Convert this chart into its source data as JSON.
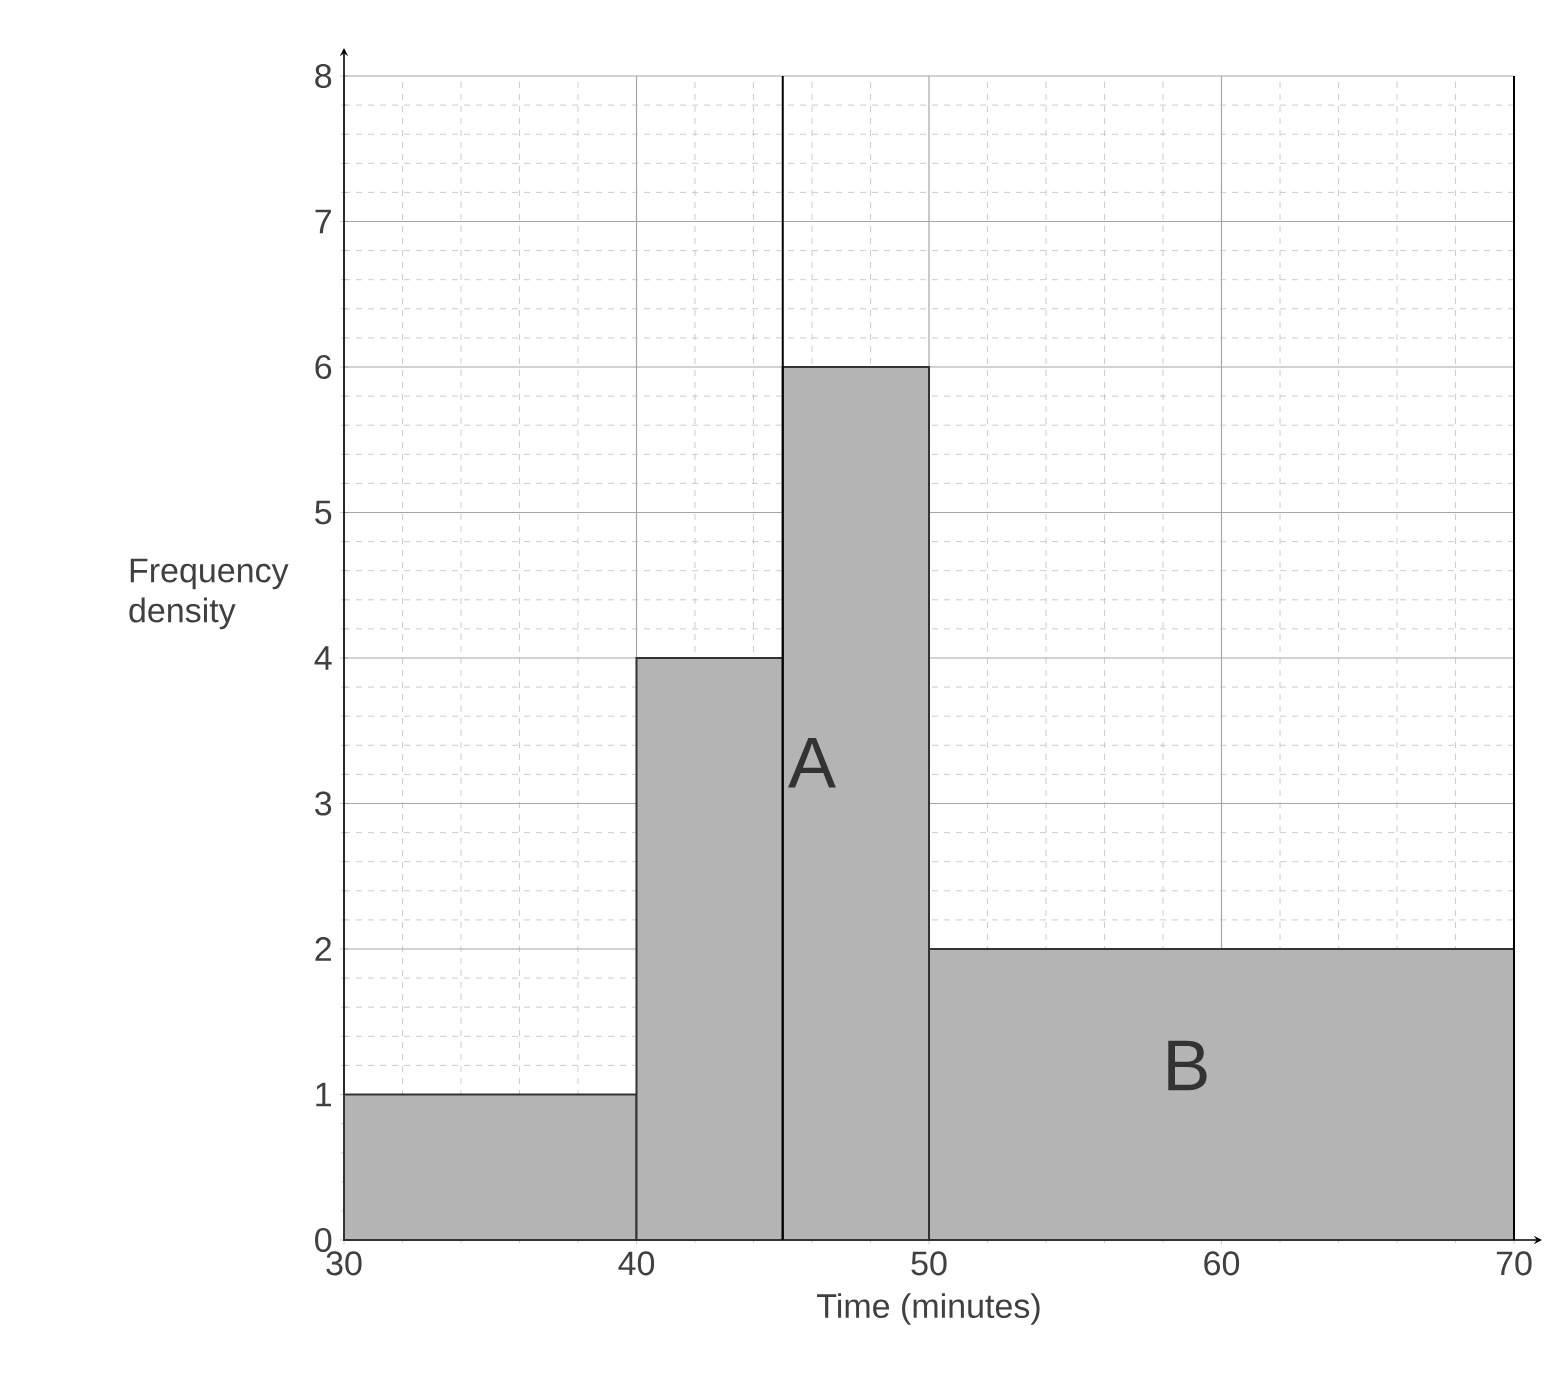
{
  "chart_data": {
    "type": "histogram",
    "xlabel": "Time (minutes)",
    "ylabel": "Frequency density",
    "bins": [
      30,
      40,
      45,
      50,
      70
    ],
    "values": [
      1,
      4,
      6,
      2
    ],
    "color": "#b4b4b4",
    "xlim": [
      30,
      70
    ],
    "ylim": [
      0,
      8
    ],
    "xticks": [
      30,
      40,
      50,
      60,
      70
    ],
    "yticks": [
      0,
      1,
      2,
      3,
      4,
      5,
      6,
      7,
      8
    ],
    "grid": true,
    "ref_lines": [
      {
        "axis": "x",
        "value": 45,
        "color": "#000000"
      },
      {
        "axis": "x",
        "value": 70,
        "color": "#000000"
      }
    ],
    "annotations": [
      "A",
      "B"
    ]
  }
}
